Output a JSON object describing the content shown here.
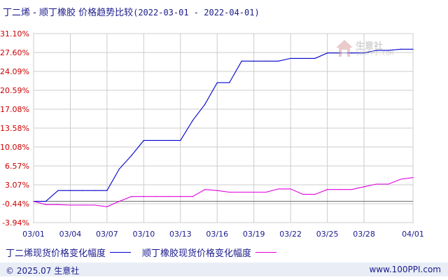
{
  "title": {
    "main": "丁二烯 - 顺丁橡胶 价格趋势比较",
    "range": "(2022-03-01 - 2022-04-01)"
  },
  "watermark": {
    "name": "生意社",
    "url": "100PPI.COM"
  },
  "legend": [
    {
      "label": "丁二烯现货价格变化幅度",
      "color": "#0000cc"
    },
    {
      "label": "顺丁橡胶现货价格变化幅度",
      "color": "#e000e0"
    }
  ],
  "footer": {
    "copyright": "© 2025.07 生意社",
    "site": "www.100PPI.com"
  },
  "chart_data": {
    "type": "line",
    "x": [
      "03/01",
      "03/02",
      "03/03",
      "03/04",
      "03/05",
      "03/06",
      "03/07",
      "03/08",
      "03/09",
      "03/10",
      "03/11",
      "03/12",
      "03/13",
      "03/14",
      "03/15",
      "03/16",
      "03/17",
      "03/18",
      "03/19",
      "03/20",
      "03/21",
      "03/22",
      "03/23",
      "03/24",
      "03/25",
      "03/26",
      "03/27",
      "03/28",
      "03/29",
      "03/30",
      "03/31",
      "04/01"
    ],
    "xticks": [
      "03/01",
      "03/04",
      "03/07",
      "03/10",
      "03/13",
      "03/16",
      "03/19",
      "03/22",
      "03/25",
      "03/28",
      "04/01"
    ],
    "yticks": [
      "31.10%",
      "27.60%",
      "24.09%",
      "20.59%",
      "17.08%",
      "13.58%",
      "10.08%",
      "6.57%",
      "3.07%",
      "-0.44%",
      "-3.94%"
    ],
    "ylim": [
      -3.94,
      31.1
    ],
    "grid": true,
    "series": [
      {
        "name": "丁二烯现货价格变化幅度",
        "color": "#0000cc",
        "values": [
          0,
          0,
          2,
          2,
          2,
          2,
          2,
          6,
          8.5,
          11.3,
          11.3,
          11.3,
          11.3,
          15,
          18,
          22,
          22,
          26,
          26,
          26,
          26,
          26.5,
          26.5,
          26.5,
          27.5,
          27.5,
          27.5,
          27.5,
          28,
          28,
          28.2,
          28.2
        ]
      },
      {
        "name": "顺丁橡胶现货价格变化幅度",
        "color": "#e000e0",
        "values": [
          0,
          -0.6,
          -0.6,
          -0.7,
          -0.7,
          -0.7,
          -1.0,
          0,
          0.9,
          0.9,
          0.9,
          0.9,
          0.9,
          0.9,
          2.2,
          2,
          1.7,
          1.7,
          1.7,
          1.7,
          2.3,
          2.3,
          1.3,
          1.3,
          2.2,
          2.2,
          2.2,
          2.7,
          3.2,
          3.2,
          4.1,
          4.4
        ]
      }
    ]
  }
}
